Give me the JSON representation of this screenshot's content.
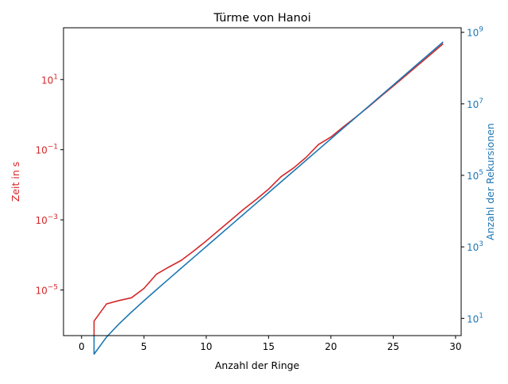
{
  "chart_data": {
    "type": "line",
    "title": "Türme von Hanoi",
    "xlabel": "Anzahl der Ringe",
    "ylabel_left": "Zeit in s",
    "ylabel_right": "Anzahl der Rekursionen",
    "xlim": [
      -1.45,
      30.45
    ],
    "ylim_left": [
      5e-07,
      300
    ],
    "ylim_right": [
      3.3,
      1340000000.0
    ],
    "yscale_left": "log",
    "yscale_right": "log",
    "x_ticks": [
      0,
      5,
      10,
      15,
      20,
      25,
      30
    ],
    "y_left_ticks": [
      {
        "value": 1e-05,
        "mantissa": "10",
        "exp": "−5"
      },
      {
        "value": 0.001,
        "mantissa": "10",
        "exp": "−3"
      },
      {
        "value": 0.1,
        "mantissa": "10",
        "exp": "−1"
      },
      {
        "value": 10,
        "mantissa": "10",
        "exp": "1"
      }
    ],
    "y_right_ticks": [
      {
        "value": 10,
        "mantissa": "10",
        "exp": "1"
      },
      {
        "value": 1000,
        "mantissa": "10",
        "exp": "3"
      },
      {
        "value": 100000,
        "mantissa": "10",
        "exp": "5"
      },
      {
        "value": 10000000,
        "mantissa": "10",
        "exp": "7"
      },
      {
        "value": 1000000000,
        "mantissa": "10",
        "exp": "9"
      }
    ],
    "colors": {
      "time": "#d62728",
      "recursions": "#1f77b4"
    },
    "series": [
      {
        "axis": "left",
        "x": [
          1,
          1,
          2,
          3,
          4,
          5,
          6,
          7,
          8,
          9,
          10,
          11,
          12,
          13,
          14,
          15,
          16,
          17,
          18,
          19,
          20,
          21,
          22,
          23,
          24,
          25,
          26,
          27,
          28,
          29
        ],
        "values": [
          5e-07,
          1.3e-06,
          4e-06,
          5e-06,
          6e-06,
          1.1e-05,
          2.8e-05,
          4.5e-05,
          7e-05,
          0.00013,
          0.00025,
          0.0005,
          0.001,
          0.002,
          0.0038,
          0.0075,
          0.017,
          0.03,
          0.06,
          0.14,
          0.23,
          0.45,
          0.85,
          1.65,
          3.3,
          6.5,
          13,
          26,
          52,
          105
        ]
      },
      {
        "axis": "right",
        "x": [
          1,
          1,
          2,
          3,
          4,
          5,
          6,
          7,
          8,
          9,
          10,
          11,
          12,
          13,
          14,
          15,
          16,
          17,
          18,
          19,
          20,
          21,
          22,
          23,
          24,
          25,
          26,
          27,
          28,
          29
        ],
        "values": [
          3.3,
          1,
          3,
          7,
          15,
          31,
          63,
          127,
          255,
          511,
          1023,
          2047,
          4095,
          8191,
          16383,
          32767,
          65535,
          131071,
          262143,
          524287,
          1048575,
          2097151,
          4194303,
          8388607,
          16777215,
          33554431,
          67108863,
          134217727,
          268435455,
          536870911
        ]
      }
    ]
  }
}
